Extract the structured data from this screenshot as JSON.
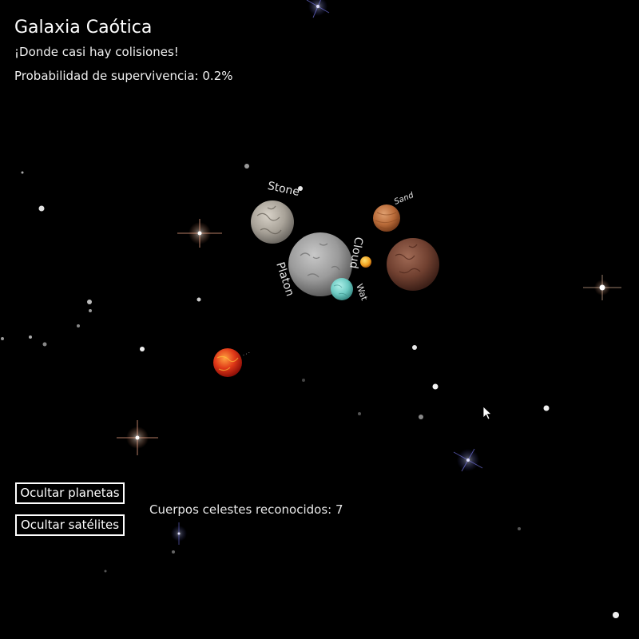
{
  "hud": {
    "title": "Galaxia Caótica",
    "subtitle": "¡Donde casi hay colisiones!",
    "survival": "Probabilidad de supervivencia: 0.2%"
  },
  "controls": {
    "hide_planets": "Ocultar planetas",
    "hide_satellites": "Ocultar satélites"
  },
  "status": {
    "recognized_bodies": "Cuerpos celestes reconocidos: 7"
  },
  "bodies": [
    {
      "id": "stone",
      "label": "Stone",
      "color": "#b8b2aa"
    },
    {
      "id": "platon",
      "label": "Platon",
      "color": "#a9a9a9"
    },
    {
      "id": "cloud",
      "label": "Cloud",
      "color": "#dcdcdc"
    },
    {
      "id": "sand",
      "label": "Sand",
      "color": "#c67a45"
    },
    {
      "id": "mud",
      "label": "",
      "color": "#7a4a3a"
    },
    {
      "id": "wat",
      "label": "Wat",
      "color": "#7fd6cf"
    },
    {
      "id": "sun",
      "label": "",
      "color": "#f0a020"
    },
    {
      "id": "lava",
      "label": "",
      "color": "#e0301a"
    }
  ],
  "colors": {
    "background": "#000000",
    "text": "#ffffff",
    "button_border": "#ffffff"
  }
}
